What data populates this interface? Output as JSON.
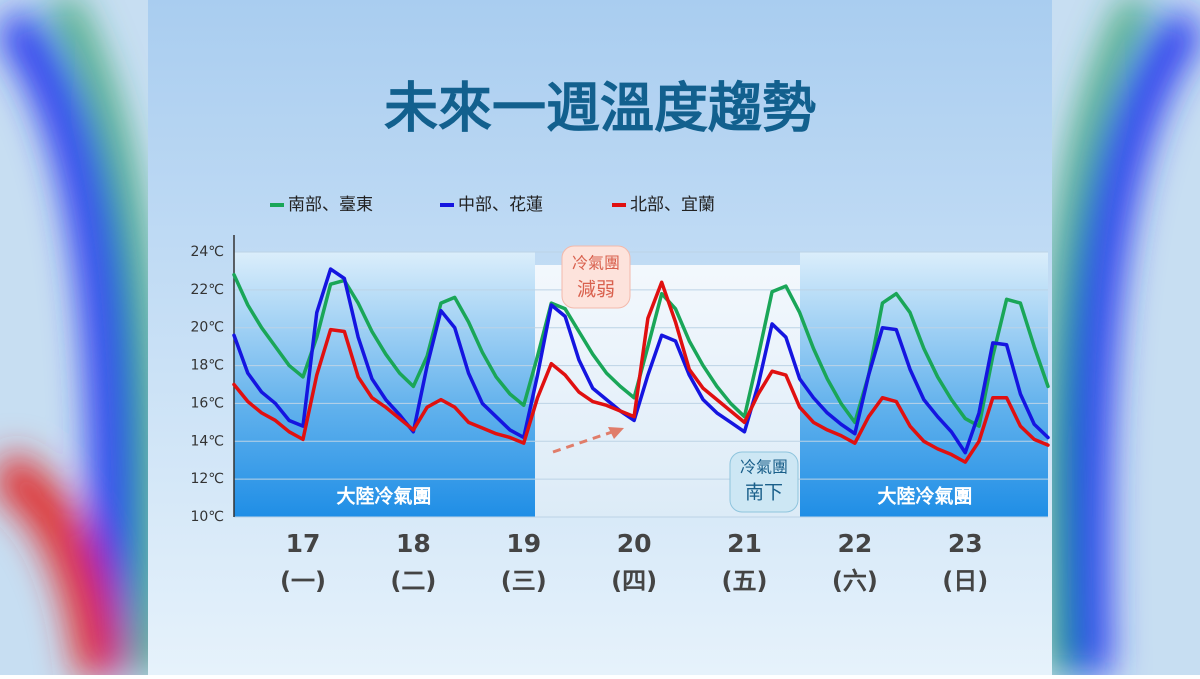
{
  "chart_data": {
    "type": "line",
    "title": "未來一週溫度趨勢",
    "categories": [
      null,
      null,
      null,
      null,
      null,
      "17",
      null,
      null,
      null,
      null,
      null,
      null,
      null,
      "18",
      null,
      null,
      null,
      null,
      null,
      null,
      null,
      "19",
      null,
      null,
      null,
      null,
      null,
      null,
      null,
      "20",
      null,
      null,
      null,
      null,
      null,
      null,
      null,
      "21",
      null,
      null,
      null,
      null,
      null,
      null,
      null,
      "22",
      null,
      null,
      null,
      null,
      null,
      null,
      null,
      "23",
      null,
      null,
      null,
      null,
      null,
      null
    ],
    "category_sublabels": [
      null,
      null,
      null,
      null,
      null,
      "(一)",
      null,
      null,
      null,
      null,
      null,
      null,
      null,
      "(二)",
      null,
      null,
      null,
      null,
      null,
      null,
      null,
      "(三)",
      null,
      null,
      null,
      null,
      null,
      null,
      null,
      "(四)",
      null,
      null,
      null,
      null,
      null,
      null,
      null,
      "(五)",
      null,
      null,
      null,
      null,
      null,
      null,
      null,
      "(六)",
      null,
      null,
      null,
      null,
      null,
      null,
      null,
      "(日)",
      null,
      null,
      null,
      null,
      null,
      null
    ],
    "series": [
      {
        "name": "南部、臺東",
        "color": "#1aa658",
        "values": [
          22.8,
          21.2,
          20,
          19,
          18,
          17.4,
          19.5,
          22.3,
          22.5,
          21.3,
          19.8,
          18.6,
          17.6,
          16.9,
          18.5,
          21.3,
          21.6,
          20.3,
          18.7,
          17.4,
          16.5,
          15.9,
          18.5,
          21.3,
          21,
          19.8,
          18.6,
          17.6,
          16.9,
          16.3,
          19,
          21.8,
          21,
          19.3,
          18,
          16.9,
          16,
          15.3,
          18.5,
          21.9,
          22.2,
          20.8,
          18.9,
          17.3,
          16,
          15,
          17.5,
          21.3,
          21.8,
          20.8,
          18.9,
          17.4,
          16.2,
          15.2,
          14.8,
          18.5,
          21.5,
          21.3,
          19,
          16.9
        ]
      },
      {
        "name": "中部、花蓮",
        "color": "#1515e0",
        "values": [
          19.6,
          17.6,
          16.6,
          16,
          15.1,
          14.8,
          20.8,
          23.1,
          22.6,
          19.5,
          17.3,
          16.2,
          15.4,
          14.5,
          18,
          20.9,
          20,
          17.6,
          16,
          15.3,
          14.6,
          14.2,
          17.5,
          21.2,
          20.6,
          18.3,
          16.8,
          16.2,
          15.6,
          15.1,
          17.5,
          19.6,
          19.3,
          17.5,
          16.2,
          15.5,
          15,
          14.5,
          17,
          20.2,
          19.5,
          17.3,
          16.3,
          15.5,
          14.9,
          14.4,
          17.5,
          20,
          19.9,
          17.8,
          16.2,
          15.3,
          14.5,
          13.4,
          15.5,
          19.2,
          19.1,
          16.5,
          14.9,
          14.2
        ]
      },
      {
        "name": "北部、宜蘭",
        "color": "#e01010",
        "values": [
          17,
          16.1,
          15.5,
          15.1,
          14.5,
          14.1,
          17.5,
          19.9,
          19.8,
          17.4,
          16.3,
          15.8,
          15.2,
          14.6,
          15.8,
          16.2,
          15.8,
          15,
          14.7,
          14.4,
          14.2,
          13.9,
          16.3,
          18.1,
          17.5,
          16.6,
          16.1,
          15.9,
          15.6,
          15.3,
          20.5,
          22.4,
          20.3,
          17.8,
          16.8,
          16.2,
          15.6,
          15,
          16.5,
          17.7,
          17.5,
          15.8,
          15,
          14.6,
          14.3,
          13.9,
          15.3,
          16.3,
          16.1,
          14.8,
          14,
          13.6,
          13.3,
          12.9,
          14,
          16.3,
          16.3,
          14.8,
          14.1,
          13.8
        ]
      }
    ],
    "ylim": [
      10,
      24
    ],
    "yticks": [
      {
        "value": 10,
        "label": "10℃"
      },
      {
        "value": 12,
        "label": "12℃"
      },
      {
        "value": 14,
        "label": "14℃"
      },
      {
        "value": 16,
        "label": "16℃"
      },
      {
        "value": 18,
        "label": "18℃"
      },
      {
        "value": 20,
        "label": "20℃"
      },
      {
        "value": 22,
        "label": "22℃"
      },
      {
        "value": 24,
        "label": "24℃"
      }
    ],
    "grid": true,
    "region_labels": [
      "大陸冷氣團",
      "大陸冷氣團"
    ],
    "callouts": [
      [
        "冷氣團",
        "減弱"
      ],
      [
        "冷氣團",
        "南下"
      ]
    ]
  }
}
